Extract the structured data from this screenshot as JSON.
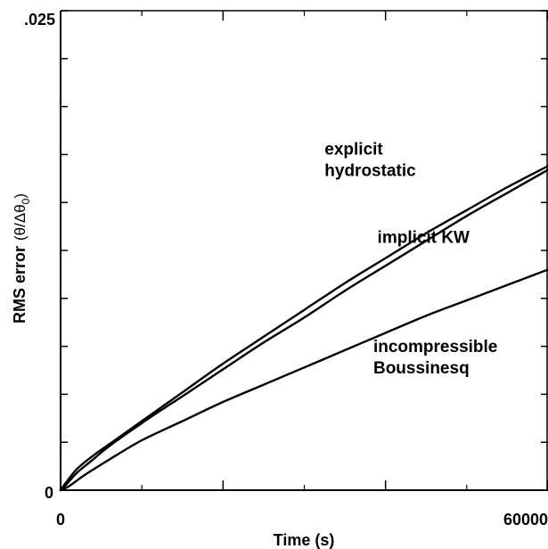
{
  "chart_data": {
    "type": "line",
    "xlabel": "Time (s)",
    "ylabel": "RMS error",
    "ylabel_unit": "(θ/Δθ",
    "ylabel_unit_sub": "0",
    "ylabel_unit_close": ")",
    "xlim": [
      0,
      60000
    ],
    "ylim": [
      0,
      0.025
    ],
    "x_tick_labels": [
      "0",
      "60000"
    ],
    "y_tick_labels": [
      ".025",
      "0"
    ],
    "y_tick_values": [
      0.025,
      0
    ],
    "x_major_ticks": [
      0,
      20000,
      40000,
      60000
    ],
    "x_minor_ticks": [
      10000,
      30000,
      50000
    ],
    "y_ticks": [
      0.0,
      0.0025,
      0.005,
      0.0075,
      0.01,
      0.0125,
      0.015,
      0.0175,
      0.02,
      0.0225,
      0.025
    ],
    "grid": false,
    "series": [
      {
        "id": "explicit",
        "x": [
          0,
          500,
          2000,
          4000,
          6000,
          10000,
          15000,
          20000,
          25000,
          30000,
          35000,
          40000,
          45000,
          50000,
          55000,
          60000
        ],
        "y": [
          0,
          0.0003,
          0.0011,
          0.0018,
          0.0024,
          0.0036,
          0.0051,
          0.0066,
          0.008,
          0.0094,
          0.0108,
          0.0121,
          0.0134,
          0.0146,
          0.0158,
          0.0169
        ]
      },
      {
        "id": "implicit",
        "x": [
          0,
          500,
          2000,
          4000,
          6000,
          10000,
          15000,
          20000,
          25000,
          30000,
          35000,
          40000,
          45000,
          50000,
          55000,
          60000
        ],
        "y": [
          0,
          0.0002,
          0.0009,
          0.0016,
          0.0023,
          0.0035,
          0.0049,
          0.0063,
          0.0077,
          0.009,
          0.0104,
          0.0117,
          0.013,
          0.0143,
          0.0155,
          0.0167
        ]
      },
      {
        "id": "boussinesq",
        "x": [
          0,
          1000,
          3000,
          6000,
          10000,
          15000,
          20000,
          25000,
          30000,
          35000,
          40000,
          45000,
          50000,
          55000,
          60000
        ],
        "y": [
          0,
          0.0002,
          0.0008,
          0.0016,
          0.0026,
          0.0036,
          0.0046,
          0.0055,
          0.0064,
          0.0073,
          0.0082,
          0.0091,
          0.0099,
          0.0107,
          0.0115
        ]
      }
    ],
    "annotations": [
      {
        "lines": [
          "explicit",
          "hydrostatic"
        ],
        "x": 32500,
        "y": 0.0175
      },
      {
        "lines": [
          "implicit KW"
        ],
        "x": 39000,
        "y": 0.0129
      },
      {
        "lines": [
          "incompressible",
          "Boussinesq"
        ],
        "x": 38500,
        "y": 0.0072
      }
    ]
  }
}
